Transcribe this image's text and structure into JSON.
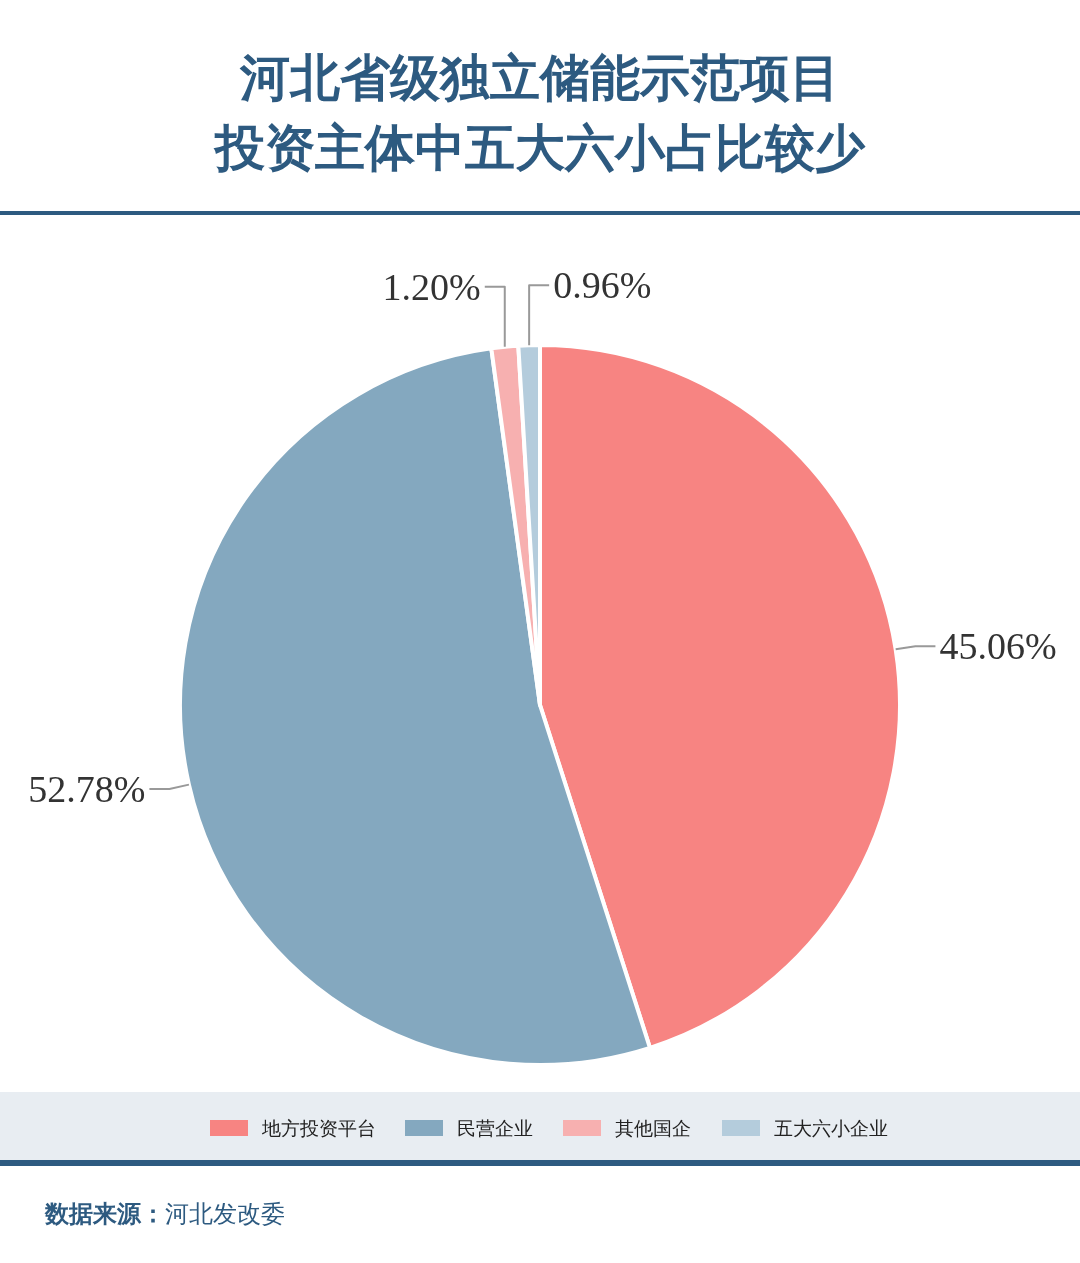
{
  "chart_data": {
    "type": "pie",
    "title": "河北省级独立储能示范项目",
    "subtitle": "投资主体中五大六小占比较少",
    "categories": [
      "地方投资平台",
      "民营企业",
      "其他国企",
      "五大六小企业"
    ],
    "values": [
      45.06,
      52.78,
      1.2,
      0.96
    ],
    "value_labels": [
      "45.06%",
      "52.78%",
      "1.20%",
      "0.96%"
    ],
    "colors": [
      "#f78482",
      "#84a8bf",
      "#f7b0b0",
      "#b4ccdc"
    ],
    "legend": "bottom",
    "annotations": [
      "**数据来源：**河北发改委"
    ]
  }
}
